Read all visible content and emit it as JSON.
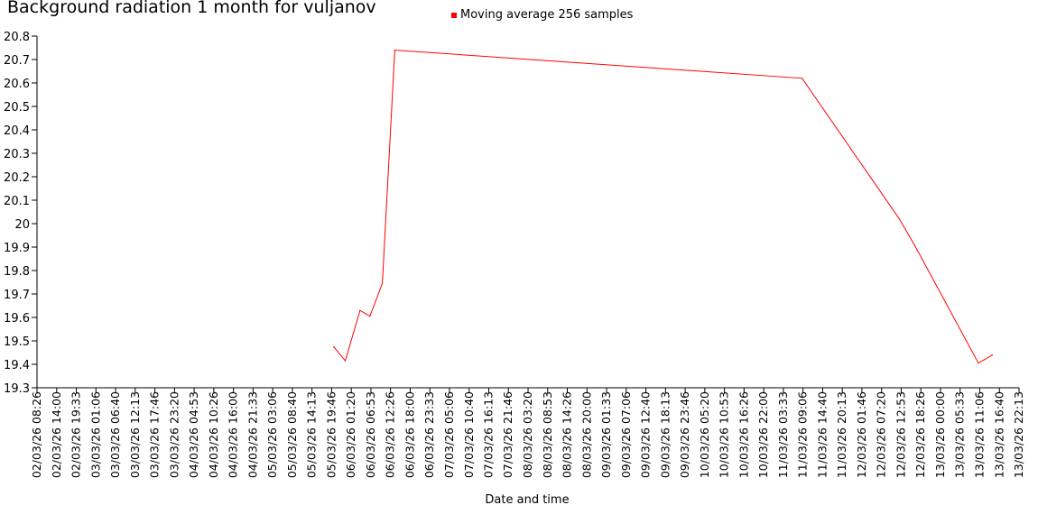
{
  "chart_data": {
    "type": "line",
    "title": "Background radiation 1 month for vuljanov",
    "xlabel": "Date and time",
    "ylabel": "",
    "ylim": [
      19.3,
      20.8
    ],
    "yticks": [
      "19.3",
      "19.4",
      "19.5",
      "19.6",
      "19.7",
      "19.8",
      "19.9",
      "20",
      "20.1",
      "20.2",
      "20.3",
      "20.4",
      "20.5",
      "20.6",
      "20.7",
      "20.8"
    ],
    "xticks": [
      "02/03/26 08:26",
      "02/03/26 14:00",
      "02/03/26 19:33",
      "03/03/26 01:06",
      "03/03/26 06:40",
      "03/03/26 12:13",
      "03/03/26 17:46",
      "03/03/26 23:20",
      "04/03/26 04:53",
      "04/03/26 10:26",
      "04/03/26 16:00",
      "04/03/26 21:33",
      "05/03/26 03:06",
      "05/03/26 08:40",
      "05/03/26 14:13",
      "05/03/26 19:46",
      "06/03/26 01:20",
      "06/03/26 06:53",
      "06/03/26 12:26",
      "06/03/26 18:00",
      "06/03/26 23:33",
      "07/03/26 05:06",
      "07/03/26 10:40",
      "07/03/26 16:13",
      "07/03/26 21:46",
      "08/03/26 03:20",
      "08/03/26 08:53",
      "08/03/26 14:26",
      "08/03/26 20:00",
      "09/03/26 01:33",
      "09/03/26 07:06",
      "09/03/26 12:40",
      "09/03/26 18:13",
      "09/03/26 23:46",
      "10/03/26 05:20",
      "10/03/26 10:53",
      "10/03/26 16:26",
      "10/03/26 22:00",
      "11/03/26 03:33",
      "11/03/26 09:06",
      "11/03/26 14:40",
      "11/03/26 20:13",
      "12/03/26 01:46",
      "12/03/26 07:20",
      "12/03/26 12:53",
      "12/03/26 18:26",
      "13/03/26 00:00",
      "13/03/26 05:33",
      "13/03/26 11:06",
      "13/03/26 16:40",
      "13/03/26 22:13"
    ],
    "grid": false,
    "legend_position": "top-center",
    "series": [
      {
        "name": "Moving average 256 samples",
        "color": "#ff0000",
        "points": [
          {
            "x": "05/03/26 20:22",
            "y": 19.475
          },
          {
            "x": "05/03/26 23:37",
            "y": 19.415
          },
          {
            "x": "06/03/26 03:48",
            "y": 19.63
          },
          {
            "x": "06/03/26 06:36",
            "y": 19.605
          },
          {
            "x": "06/03/26 10:07",
            "y": 19.745
          },
          {
            "x": "06/03/26 13:38",
            "y": 20.74
          },
          {
            "x": "11/03/26 08:51",
            "y": 20.62
          },
          {
            "x": "12/03/26 12:22",
            "y": 20.02
          },
          {
            "x": "12/03/26 16:46",
            "y": 19.905
          },
          {
            "x": "13/03/26 10:44",
            "y": 19.405
          },
          {
            "x": "13/03/26 14:40",
            "y": 19.44
          }
        ]
      }
    ]
  }
}
